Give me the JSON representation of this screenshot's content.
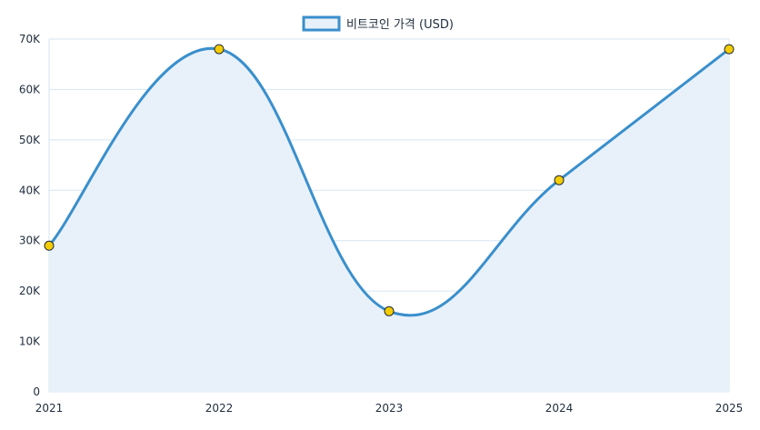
{
  "chart_data": {
    "type": "line",
    "x": [
      "2021",
      "2022",
      "2023",
      "2024",
      "2025"
    ],
    "series": [
      {
        "name": "비트코인 가격 (USD)",
        "values": [
          29000,
          68000,
          16000,
          42000,
          68000
        ]
      }
    ],
    "ylim": [
      0,
      70000
    ],
    "yticks": [
      0,
      10000,
      20000,
      30000,
      40000,
      50000,
      60000,
      70000
    ],
    "ytick_labels": [
      "0",
      "10K",
      "20K",
      "30K",
      "40K",
      "50K",
      "60K",
      "70K"
    ],
    "grid": true,
    "legend": "top-center",
    "fill": "area",
    "smooth": true
  },
  "colors": {
    "line": "#3a8fcc",
    "fill": "#e8f1fa",
    "grid": "#d6e6f2",
    "point_fill": "#f5cc00",
    "point_stroke": "#1f2d3d"
  }
}
